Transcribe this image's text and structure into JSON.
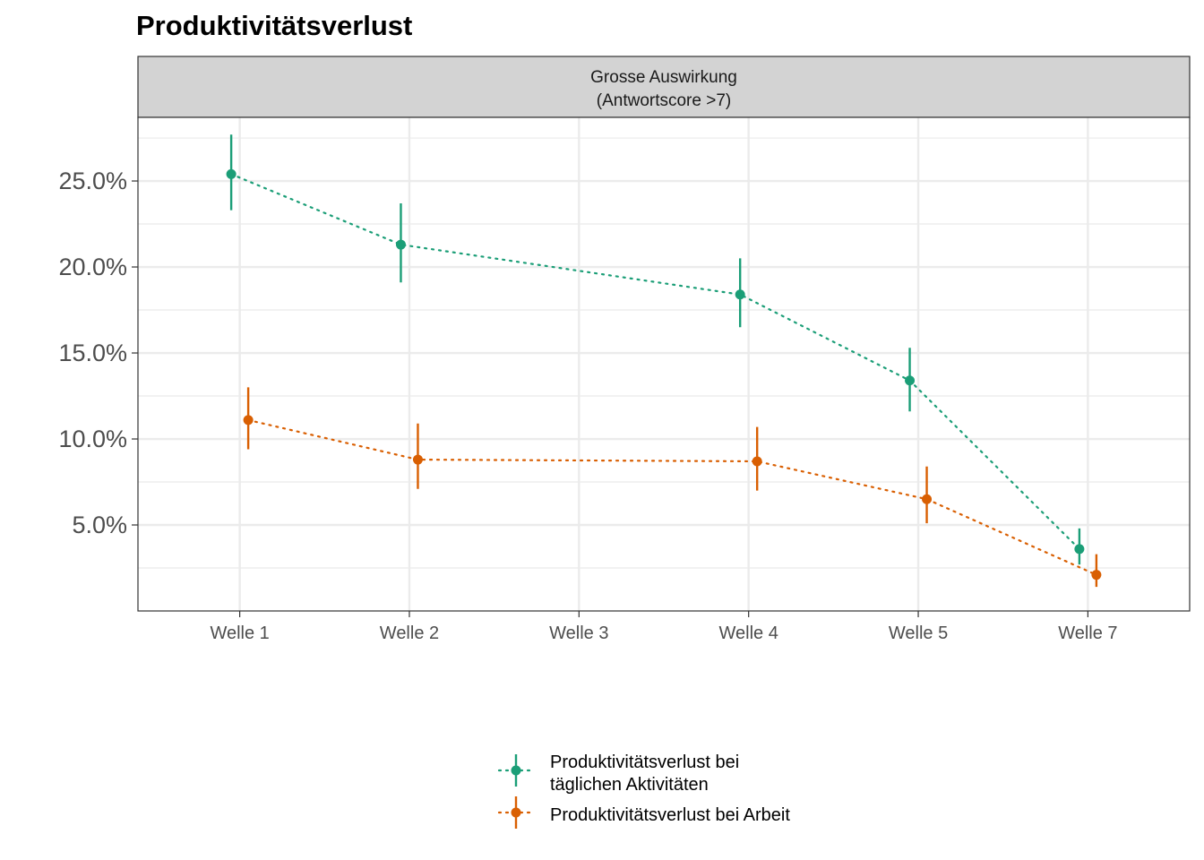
{
  "chart_data": {
    "type": "line",
    "title": "Produktivitätsverlust",
    "facet": [
      "Grosse Auswirkung",
      "(Antwortscore >7)"
    ],
    "xlabel": "",
    "ylabel": "",
    "categories": [
      "Welle 1",
      "Welle 2",
      "Welle 3",
      "Welle 4",
      "Welle 5",
      "Welle 7"
    ],
    "y_ticks": [
      {
        "value": 0.05,
        "label": "5.0%"
      },
      {
        "value": 0.1,
        "label": "10.0%"
      },
      {
        "value": 0.15,
        "label": "15.0%"
      },
      {
        "value": 0.2,
        "label": "20.0%"
      },
      {
        "value": 0.25,
        "label": "25.0%"
      }
    ],
    "ylim": [
      0.0,
      0.287
    ],
    "grid": true,
    "legend_position": "bottom",
    "series": [
      {
        "name_lines": [
          "Produktivitätsverlust bei",
          "täglichen Aktivitäten"
        ],
        "color": "#1b9e77",
        "line_style": "dotted",
        "points": [
          {
            "x": "Welle 1",
            "y": 0.254,
            "lo": 0.233,
            "hi": 0.277
          },
          {
            "x": "Welle 2",
            "y": 0.213,
            "lo": 0.191,
            "hi": 0.237
          },
          {
            "x": "Welle 4",
            "y": 0.184,
            "lo": 0.165,
            "hi": 0.205
          },
          {
            "x": "Welle 5",
            "y": 0.134,
            "lo": 0.116,
            "hi": 0.153
          },
          {
            "x": "Welle 7",
            "y": 0.036,
            "lo": 0.027,
            "hi": 0.048
          }
        ]
      },
      {
        "name_lines": [
          "Produktivitätsverlust bei Arbeit"
        ],
        "color": "#d95f02",
        "line_style": "dotted",
        "points": [
          {
            "x": "Welle 1",
            "y": 0.111,
            "lo": 0.094,
            "hi": 0.13
          },
          {
            "x": "Welle 2",
            "y": 0.088,
            "lo": 0.071,
            "hi": 0.109
          },
          {
            "x": "Welle 4",
            "y": 0.087,
            "lo": 0.07,
            "hi": 0.107
          },
          {
            "x": "Welle 5",
            "y": 0.065,
            "lo": 0.051,
            "hi": 0.084
          },
          {
            "x": "Welle 7",
            "y": 0.021,
            "lo": 0.014,
            "hi": 0.033
          }
        ]
      }
    ]
  }
}
